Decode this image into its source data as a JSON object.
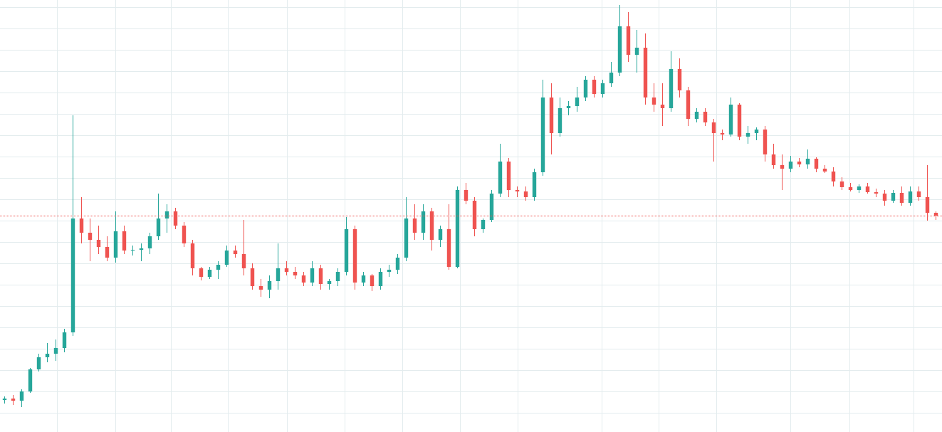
{
  "chart_data": {
    "type": "candlestick",
    "xlim": [
      -0.5,
      109.75
    ],
    "ylim": [
      0,
      607
    ],
    "xticks": [
      6.2,
      13,
      19.5,
      26.2,
      33.1,
      39.8,
      46.6,
      53.3,
      60.1,
      69.9,
      76.6,
      83.3,
      92,
      98.9,
      106.4
    ],
    "yticks": [
      27,
      57,
      87,
      117,
      147,
      177,
      207,
      237,
      267,
      297,
      327,
      357,
      387,
      417,
      447,
      477,
      507,
      537,
      567,
      597
    ],
    "grid": true,
    "grid_color": "#e3ecee",
    "up_color": "#26a69a",
    "down_color": "#ef5350",
    "price_line": 304,
    "price_line_color": "#ef5350",
    "ohlc": [
      [
        45,
        50,
        40,
        47
      ],
      [
        47,
        52,
        38,
        44
      ],
      [
        44,
        60,
        35,
        57
      ],
      [
        57,
        90,
        55,
        88
      ],
      [
        88,
        110,
        85,
        105
      ],
      [
        105,
        125,
        98,
        110
      ],
      [
        110,
        130,
        100,
        118
      ],
      [
        118,
        145,
        112,
        140
      ],
      [
        140,
        445,
        135,
        300
      ],
      [
        300,
        330,
        265,
        280
      ],
      [
        280,
        300,
        240,
        270
      ],
      [
        270,
        290,
        250,
        260
      ],
      [
        260,
        275,
        240,
        245
      ],
      [
        245,
        310,
        238,
        282
      ],
      [
        282,
        290,
        250,
        255
      ],
      [
        255,
        262,
        248,
        256
      ],
      [
        256,
        265,
        240,
        258
      ],
      [
        258,
        280,
        250,
        275
      ],
      [
        275,
        335,
        270,
        300
      ],
      [
        300,
        320,
        280,
        310
      ],
      [
        310,
        315,
        285,
        290
      ],
      [
        290,
        295,
        260,
        265
      ],
      [
        265,
        270,
        220,
        230
      ],
      [
        230,
        232,
        213,
        218
      ],
      [
        218,
        232,
        215,
        228
      ],
      [
        228,
        240,
        215,
        235
      ],
      [
        235,
        262,
        232,
        255
      ],
      [
        255,
        262,
        245,
        250
      ],
      [
        250,
        298,
        220,
        230
      ],
      [
        230,
        237,
        200,
        205
      ],
      [
        205,
        215,
        190,
        200
      ],
      [
        200,
        220,
        188,
        212
      ],
      [
        212,
        265,
        200,
        230
      ],
      [
        230,
        240,
        220,
        225
      ],
      [
        225,
        232,
        215,
        220
      ],
      [
        220,
        225,
        205,
        210
      ],
      [
        210,
        240,
        205,
        230
      ],
      [
        230,
        235,
        200,
        208
      ],
      [
        208,
        215,
        200,
        212
      ],
      [
        212,
        230,
        205,
        225
      ],
      [
        225,
        302,
        220,
        285
      ],
      [
        285,
        290,
        200,
        210
      ],
      [
        210,
        225,
        205,
        220
      ],
      [
        220,
        222,
        198,
        205
      ],
      [
        205,
        230,
        200,
        225
      ],
      [
        225,
        235,
        218,
        228
      ],
      [
        228,
        250,
        222,
        245
      ],
      [
        245,
        330,
        240,
        300
      ],
      [
        300,
        320,
        270,
        280
      ],
      [
        280,
        320,
        270,
        310
      ],
      [
        310,
        315,
        255,
        270
      ],
      [
        270,
        290,
        260,
        285
      ],
      [
        285,
        320,
        228,
        232
      ],
      [
        232,
        345,
        230,
        340
      ],
      [
        340,
        350,
        320,
        325
      ],
      [
        325,
        330,
        275,
        285
      ],
      [
        285,
        300,
        280,
        298
      ],
      [
        298,
        340,
        295,
        335
      ],
      [
        335,
        405,
        330,
        380
      ],
      [
        380,
        385,
        330,
        340
      ],
      [
        340,
        345,
        330,
        338
      ],
      [
        338,
        345,
        325,
        330
      ],
      [
        330,
        370,
        325,
        365
      ],
      [
        365,
        495,
        360,
        470
      ],
      [
        470,
        490,
        390,
        420
      ],
      [
        420,
        470,
        415,
        455
      ],
      [
        455,
        465,
        445,
        458
      ],
      [
        458,
        485,
        450,
        470
      ],
      [
        470,
        500,
        465,
        495
      ],
      [
        495,
        500,
        470,
        475
      ],
      [
        475,
        495,
        470,
        490
      ],
      [
        490,
        520,
        485,
        505
      ],
      [
        505,
        600,
        500,
        570
      ],
      [
        570,
        590,
        520,
        530
      ],
      [
        530,
        565,
        505,
        540
      ],
      [
        540,
        560,
        460,
        470
      ],
      [
        470,
        490,
        450,
        460
      ],
      [
        460,
        490,
        430,
        455
      ],
      [
        455,
        535,
        450,
        510
      ],
      [
        510,
        525,
        470,
        480
      ],
      [
        480,
        485,
        430,
        440
      ],
      [
        440,
        455,
        435,
        450
      ],
      [
        450,
        455,
        430,
        435
      ],
      [
        435,
        440,
        380,
        420
      ],
      [
        420,
        425,
        410,
        418
      ],
      [
        418,
        470,
        415,
        460
      ],
      [
        460,
        462,
        410,
        415
      ],
      [
        415,
        430,
        405,
        420
      ],
      [
        420,
        428,
        410,
        425
      ],
      [
        425,
        430,
        380,
        390
      ],
      [
        390,
        405,
        370,
        375
      ],
      [
        375,
        390,
        340,
        370
      ],
      [
        370,
        388,
        365,
        380
      ],
      [
        380,
        385,
        372,
        376
      ],
      [
        376,
        397,
        370,
        384
      ],
      [
        384,
        386,
        365,
        370
      ],
      [
        370,
        375,
        364,
        366
      ],
      [
        366,
        372,
        345,
        352
      ],
      [
        352,
        358,
        340,
        344
      ],
      [
        344,
        350,
        338,
        340
      ],
      [
        340,
        348,
        336,
        345
      ],
      [
        345,
        350,
        335,
        337
      ],
      [
        337,
        342,
        330,
        335
      ],
      [
        335,
        340,
        318,
        325
      ],
      [
        325,
        340,
        322,
        336
      ],
      [
        336,
        345,
        318,
        322
      ],
      [
        322,
        345,
        318,
        338
      ],
      [
        338,
        345,
        325,
        330
      ],
      [
        330,
        375,
        297,
        308
      ],
      [
        308,
        310,
        298,
        304
      ]
    ]
  }
}
